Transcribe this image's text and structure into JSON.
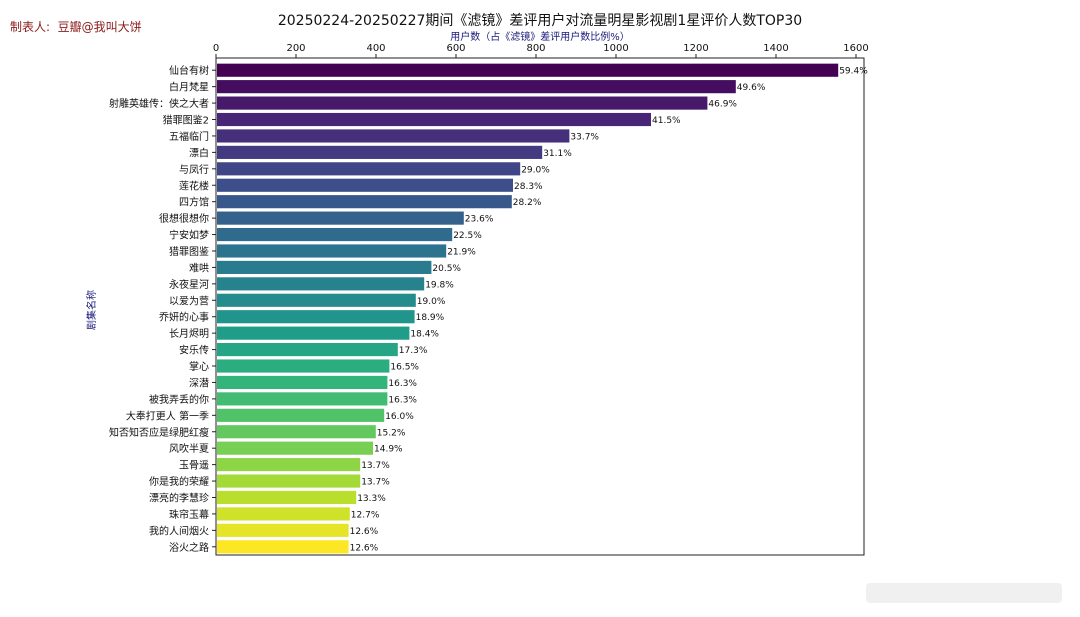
{
  "credit": "制表人:  豆瓣@我叫大饼",
  "chart_data": {
    "type": "bar",
    "orientation": "horizontal",
    "title": "20250224-20250227期间《滤镜》差评用户对流量明星影视剧1星评价人数TOP30",
    "xlabel": "用户数（占《滤镜》差评用户数比例%）",
    "ylabel": "剧集名称",
    "xlim": [
      0,
      1620
    ],
    "xticks": [
      0,
      200,
      400,
      600,
      800,
      1000,
      1200,
      1400,
      1600
    ],
    "x_axis_position": "top",
    "grid": false,
    "legend": "none",
    "colormap": "viridis",
    "categories": [
      "仙台有树",
      "白月梵星",
      "射雕英雄传：侠之大者",
      "猎罪图鉴2",
      "五福临门",
      "漂白",
      "与凤行",
      "莲花楼",
      "四方馆",
      "很想很想你",
      "宁安如梦",
      "猎罪图鉴",
      "难哄",
      "永夜星河",
      "以爱为营",
      "乔妍的心事",
      "长月烬明",
      "安乐传",
      "掌心",
      "深潜",
      "被我弄丢的你",
      "大奉打更人 第一季",
      "知否知否应是绿肥红瘦",
      "风吹半夏",
      "玉骨遥",
      "你是我的荣耀",
      "漂亮的李慧珍",
      "珠帘玉幕",
      "我的人间烟火",
      "浴火之路"
    ],
    "values": [
      1553,
      1297,
      1226,
      1085,
      881,
      813,
      758,
      740,
      737,
      617,
      588,
      573,
      536,
      518,
      497,
      494,
      481,
      452,
      431,
      426,
      426,
      418,
      397,
      390,
      358,
      358,
      348,
      332,
      329,
      329
    ],
    "labels": [
      "59.4%",
      "49.6%",
      "46.9%",
      "41.5%",
      "33.7%",
      "31.1%",
      "29.0%",
      "28.3%",
      "28.2%",
      "23.6%",
      "22.5%",
      "21.9%",
      "20.5%",
      "19.8%",
      "19.0%",
      "18.9%",
      "18.4%",
      "17.3%",
      "16.5%",
      "16.3%",
      "16.3%",
      "16.0%",
      "15.2%",
      "14.9%",
      "13.7%",
      "13.7%",
      "13.3%",
      "12.7%",
      "12.6%",
      "12.6%"
    ]
  }
}
